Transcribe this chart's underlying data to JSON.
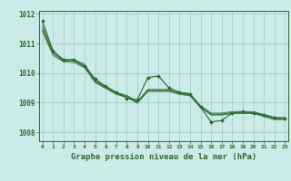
{
  "title": "Graphe pression niveau de la mer (hPa)",
  "xlabel_ticks": [
    0,
    1,
    2,
    3,
    4,
    5,
    6,
    7,
    8,
    9,
    10,
    11,
    12,
    13,
    14,
    15,
    16,
    17,
    18,
    19,
    20,
    21,
    22,
    23
  ],
  "ylim": [
    1007.7,
    1012.1
  ],
  "yticks": [
    1008,
    1009,
    1010,
    1011,
    1012
  ],
  "background_color": "#cceae8",
  "grid_color": "#99cccc",
  "line_color": "#2d6a30",
  "series": [
    [
      1011.5,
      1010.7,
      1010.45,
      1010.45,
      1010.3,
      1009.75,
      1009.55,
      1009.35,
      1009.25,
      1009.05,
      1009.45,
      1009.45,
      1009.45,
      1009.35,
      1009.3,
      1008.9,
      1008.65,
      1008.65,
      1008.7,
      1008.7,
      1008.7,
      1008.6,
      1008.5,
      1008.5
    ],
    [
      1011.45,
      1010.65,
      1010.4,
      1010.4,
      1010.2,
      1009.7,
      1009.5,
      1009.3,
      1009.2,
      1009.0,
      1009.4,
      1009.4,
      1009.4,
      1009.3,
      1009.25,
      1008.85,
      1008.6,
      1008.6,
      1008.65,
      1008.65,
      1008.65,
      1008.55,
      1008.45,
      1008.45
    ],
    [
      1011.4,
      1010.6,
      1010.38,
      1010.35,
      1010.18,
      1009.68,
      1009.48,
      1009.28,
      1009.18,
      1008.98,
      1009.38,
      1009.38,
      1009.38,
      1009.28,
      1009.23,
      1008.83,
      1008.58,
      1008.58,
      1008.63,
      1008.63,
      1008.63,
      1008.53,
      1008.43,
      1008.43
    ],
    [
      1011.6,
      1010.72,
      1010.42,
      1010.42,
      1010.22,
      1009.72,
      1009.52,
      1009.32,
      1009.22,
      1009.02,
      1009.42,
      1009.42,
      1009.42,
      1009.32,
      1009.27,
      1008.87,
      1008.62,
      1008.62,
      1008.67,
      1008.67,
      1008.67,
      1008.57,
      1008.47,
      1008.47
    ]
  ],
  "main_series": [
    1011.75,
    1010.75,
    1010.45,
    1010.45,
    1010.25,
    1009.8,
    1009.55,
    1009.35,
    1009.15,
    1009.1,
    1009.85,
    1009.9,
    1009.5,
    1009.35,
    1009.3,
    1008.85,
    1008.35,
    1008.4,
    1008.65,
    1008.7,
    1008.65,
    1008.6,
    1008.5,
    1008.45
  ],
  "figsize": [
    3.2,
    2.0
  ],
  "dpi": 100
}
